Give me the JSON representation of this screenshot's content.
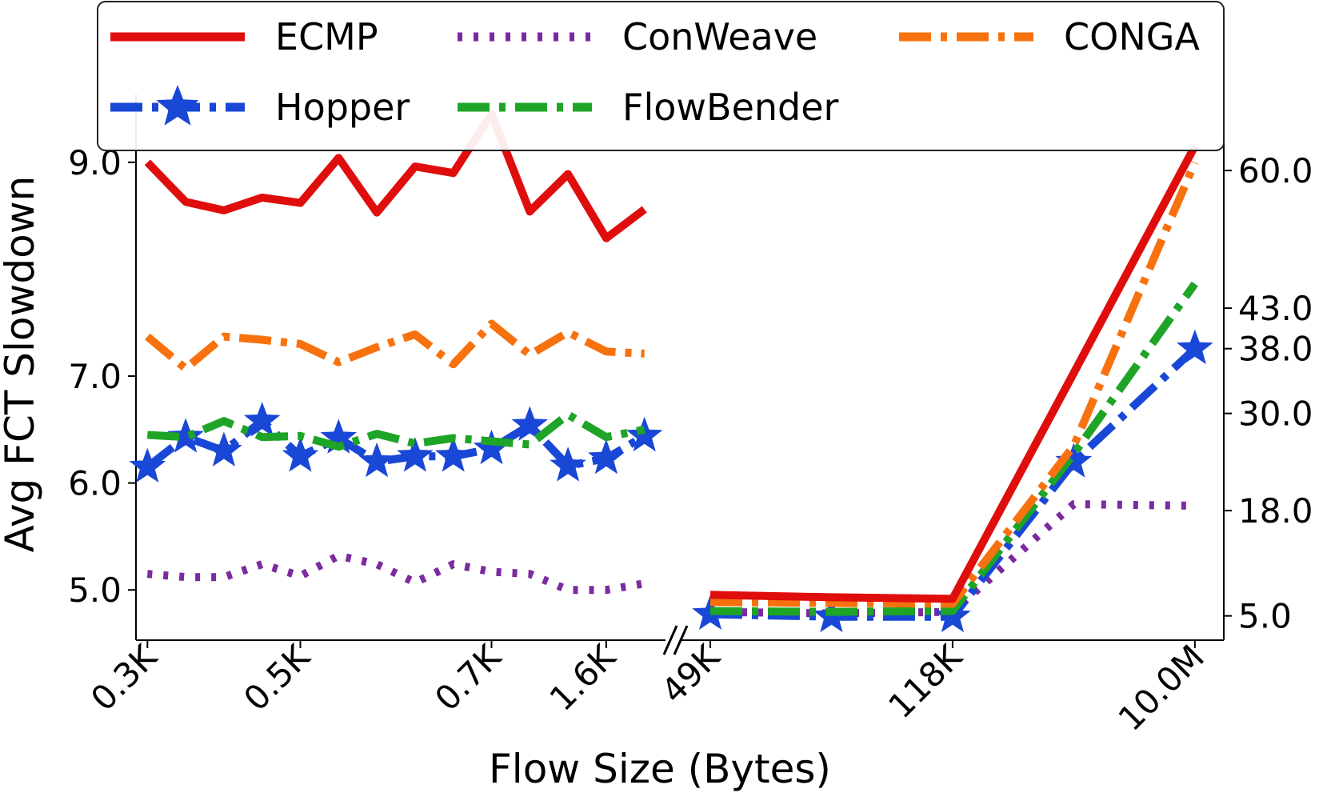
{
  "chart_data": {
    "type": "line",
    "xlabel": "Flow Size (Bytes)",
    "ylabel": "Avg FCT Slowdown",
    "axis_break_marker": "//",
    "left_panel": {
      "x_tick_labels": [
        "0.3K",
        "0.5K",
        "0.7K",
        "1.6K"
      ],
      "x_tick_positions": [
        0,
        4,
        9,
        12
      ],
      "x_range": [
        -0.3,
        13.3
      ],
      "y_tick_labels": [
        "5.0",
        "6.0",
        "7.0",
        "9.0"
      ],
      "y_tick_values": [
        5.0,
        6.0,
        7.0,
        9.0
      ],
      "ylim": [
        4.53,
        9.47
      ]
    },
    "right_panel": {
      "x_tick_labels": [
        "49K",
        "118K",
        "10.0M"
      ],
      "x_tick_positions": [
        0,
        2,
        4
      ],
      "x_range": [
        0,
        4.12
      ],
      "y_tick_labels": [
        "5.0",
        "18.0",
        "30.0",
        "38.0",
        "43.0",
        "60.0"
      ],
      "y_tick_values": [
        5.0,
        18.0,
        30.0,
        38.0,
        43.0,
        60.0
      ],
      "ylim": [
        2.0,
        69.0
      ]
    },
    "series": [
      {
        "name": "ECMP",
        "color": "#e00d0d",
        "style": "solid",
        "marker": "none",
        "left_values": [
          9.0,
          8.63,
          8.55,
          8.67,
          8.62,
          9.04,
          8.53,
          8.96,
          8.9,
          9.45,
          8.54,
          8.89,
          8.29,
          8.56
        ],
        "right_values": [
          7.6,
          7.3,
          7.1,
          35.0,
          63.0
        ]
      },
      {
        "name": "ConWeave",
        "color": "#7b2a9f",
        "style": "dotted",
        "marker": "none",
        "left_values": [
          5.15,
          5.12,
          5.12,
          5.24,
          5.13,
          5.32,
          5.24,
          5.07,
          5.24,
          5.17,
          5.15,
          5.0,
          5.0,
          5.06
        ],
        "right_values": [
          5.5,
          5.3,
          5.5,
          18.8,
          18.6
        ]
      },
      {
        "name": "CONGA",
        "color": "#f7720e",
        "style": "dashdot",
        "marker": "none",
        "left_values": [
          7.37,
          7.07,
          7.37,
          7.34,
          7.3,
          7.13,
          7.27,
          7.39,
          7.11,
          7.49,
          7.2,
          7.41,
          7.23,
          7.21
        ],
        "right_values": [
          6.7,
          6.6,
          6.5,
          26.0,
          61.0
        ]
      },
      {
        "name": "Hopper",
        "color": "#1947d6",
        "style": "dashdot",
        "marker": "star",
        "left_values": [
          6.15,
          6.43,
          6.3,
          6.58,
          6.25,
          6.42,
          6.2,
          6.25,
          6.25,
          6.32,
          6.54,
          6.16,
          6.23,
          6.44
        ],
        "right_values": [
          5.2,
          4.9,
          4.9,
          24.0,
          38.0
        ]
      },
      {
        "name": "FlowBender",
        "color": "#1ea426",
        "style": "dashdot",
        "marker": "none",
        "left_values": [
          6.45,
          6.43,
          6.58,
          6.43,
          6.44,
          6.34,
          6.46,
          6.37,
          6.42,
          6.39,
          6.36,
          6.64,
          6.43,
          6.5
        ],
        "right_values": [
          5.6,
          5.5,
          5.6,
          25.0,
          46.0
        ]
      }
    ],
    "legend": {
      "placement": "top-center",
      "columns": 3,
      "order": [
        "ECMP",
        "ConWeave",
        "CONGA",
        "Hopper",
        "FlowBender"
      ]
    }
  }
}
